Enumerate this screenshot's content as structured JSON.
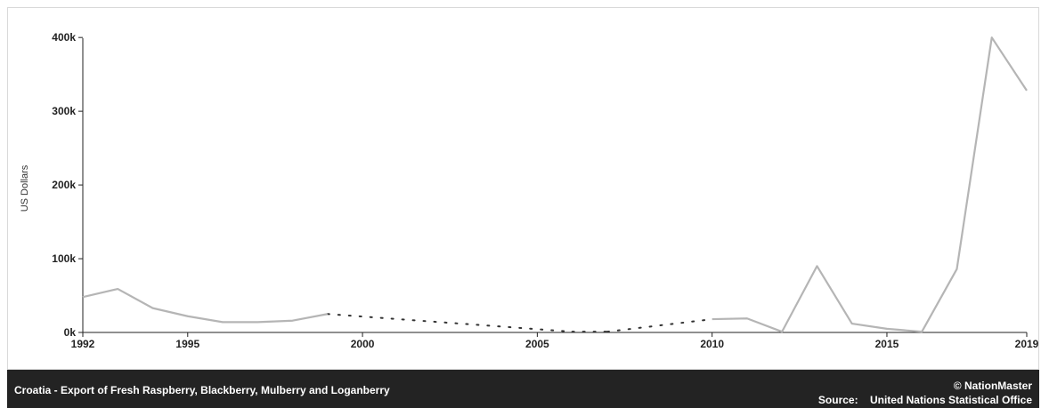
{
  "chart_data": {
    "type": "line",
    "title": "Croatia - Export of Fresh Raspberry, Blackberry, Mulberry and Loganberry",
    "ylabel": "US Dollars",
    "xlabel": "",
    "xlim": [
      1992,
      2019
    ],
    "ylim": [
      0,
      440000
    ],
    "x_ticks": [
      "1992",
      "1995",
      "2000",
      "2005",
      "2010",
      "2015",
      "2019"
    ],
    "y_ticks": [
      "0k",
      "100k",
      "200k",
      "300k",
      "400k"
    ],
    "series": [
      {
        "x": [
          1992,
          1993,
          1994,
          1995,
          1996,
          1997,
          1998,
          1999,
          2010,
          2011,
          2012,
          2013,
          2014,
          2015,
          2016,
          2017,
          2018,
          2019
        ],
        "values": [
          48000,
          59000,
          33000,
          22000,
          14000,
          14000,
          16000,
          25000,
          18000,
          19000,
          1000,
          90000,
          12000,
          5000,
          1000,
          86000,
          400000,
          328000
        ],
        "color": "#b5b5b5"
      }
    ],
    "interpolated_gaps": [
      {
        "from": [
          1999,
          25000
        ],
        "to": [
          2006,
          1000
        ]
      },
      {
        "from": [
          2006,
          1000
        ],
        "to": [
          2007,
          1000
        ]
      },
      {
        "from": [
          2007,
          1000
        ],
        "to": [
          2010,
          18000
        ]
      }
    ],
    "grid": false,
    "legend": "none"
  },
  "footer": {
    "title": "Croatia - Export of Fresh Raspberry, Blackberry, Mulberry and Loganberry",
    "brand": "© NationMaster",
    "source_label": "Source:",
    "source_value": "United Nations Statistical Office"
  },
  "colors": {
    "line": "#b5b5b5",
    "dotted": "#333333",
    "footer_bg": "#232323"
  }
}
